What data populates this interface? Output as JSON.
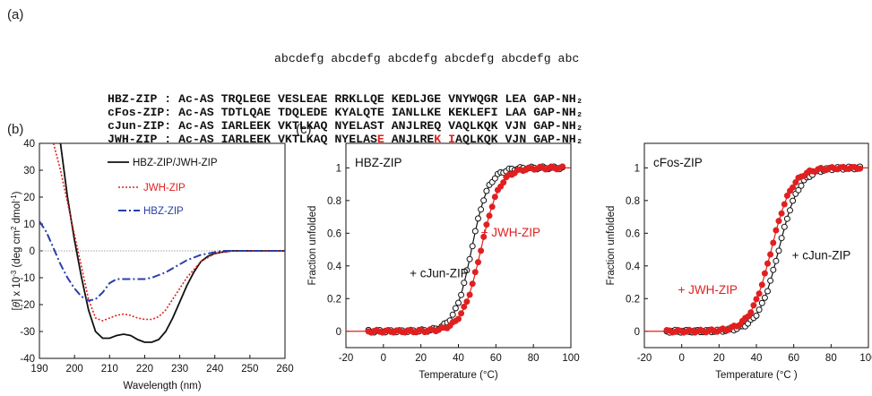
{
  "panels": {
    "a": "(a)",
    "b": "(b)",
    "c": "(c)"
  },
  "sequences": {
    "header": "abcdefg abcdefg abcdefg abcdefg abcdefg abc",
    "rows": [
      {
        "name": "HBZ-ZIP :",
        "prefix": "Ac-AS",
        "segments": [
          "TRQLEGE",
          "VESLEAE",
          "RRKLLQE",
          "KEDLJGE",
          "VNYWQGR",
          "LEA"
        ],
        "suffix": "GAP-NH₂",
        "red": []
      },
      {
        "name": "cFos-ZIP:",
        "prefix": "Ac-AS",
        "segments": [
          "TDTLQAE",
          "TDQLEDE",
          "KYALQTE",
          "IANLLKE",
          "KEKLEFI",
          "LAA"
        ],
        "suffix": "GAP-NH₂",
        "red": []
      },
      {
        "name": "cJun-ZIP:",
        "prefix": "Ac-AS",
        "segments": [
          "IARLEEK",
          "VKTLKAQ",
          "NYELAST",
          "ANJLREQ",
          "VAQLKQK",
          "VJN"
        ],
        "suffix": "GAP-NH₂",
        "red": []
      },
      {
        "name": "JWH-ZIP :",
        "prefix": "Ac-AS",
        "segments": [
          "IARLEEK",
          "VKTLKAQ",
          "NYELASE",
          "ANJLREK",
          "IAQLKQK",
          "VJN"
        ],
        "suffix": "GAP-NH₂",
        "red": [
          [
            2,
            6
          ],
          [
            3,
            6
          ],
          [
            4,
            0
          ]
        ]
      }
    ]
  },
  "colors": {
    "black": "#111111",
    "red": "#e02020",
    "blue": "#2a3fa8",
    "grid": "#888888"
  },
  "chart_data": [
    {
      "type": "line",
      "xlabel": "Wavelength (nm)",
      "ylabel_parts": [
        "[",
        "θ",
        "] x 10",
        "-3",
        " (deg cm",
        "2",
        " dmol",
        "-1",
        ")"
      ],
      "xlim": [
        190,
        260
      ],
      "ylim": [
        -40,
        40
      ],
      "xticks": [
        190,
        200,
        210,
        220,
        230,
        240,
        250,
        260
      ],
      "yticks": [
        -40,
        -30,
        -20,
        -10,
        0,
        10,
        20,
        30,
        40
      ],
      "legend_placement": "top-right",
      "series": [
        {
          "name": "HBZ-ZIP/JWH-ZIP",
          "style": "solid",
          "color": "#111111",
          "x": [
            196,
            198,
            200,
            202,
            204,
            206,
            208,
            210,
            212,
            214,
            216,
            218,
            220,
            222,
            224,
            226,
            228,
            230,
            232,
            234,
            236,
            238,
            240,
            242,
            245,
            250,
            255,
            260
          ],
          "y": [
            40,
            20,
            4,
            -10,
            -22,
            -30,
            -32.5,
            -32.5,
            -31.5,
            -31,
            -31.5,
            -33,
            -34,
            -34,
            -33,
            -30,
            -25,
            -19,
            -13,
            -8,
            -4,
            -2,
            -1,
            -0.5,
            0,
            0,
            0,
            0
          ]
        },
        {
          "name": "JWH-ZIP",
          "style": "dotted",
          "color": "#e02020",
          "x": [
            194,
            196,
            198,
            200,
            202,
            204,
            206,
            208,
            210,
            212,
            214,
            216,
            218,
            220,
            222,
            224,
            226,
            228,
            230,
            232,
            234,
            236,
            238,
            240,
            242,
            245,
            250,
            255,
            260
          ],
          "y": [
            40,
            30,
            18,
            6,
            -6,
            -18,
            -25,
            -26,
            -25,
            -24,
            -23.5,
            -24,
            -25,
            -25.5,
            -25.5,
            -24.5,
            -22,
            -18,
            -14,
            -10,
            -7,
            -4,
            -2.5,
            -1,
            -0.5,
            0,
            0,
            0,
            0
          ]
        },
        {
          "name": "HBZ-ZIP",
          "style": "dashdot",
          "color": "#2a3fa8",
          "x": [
            190,
            192,
            194,
            196,
            198,
            200,
            202,
            204,
            206,
            208,
            210,
            212,
            214,
            216,
            218,
            220,
            222,
            224,
            226,
            228,
            230,
            232,
            234,
            236,
            238,
            240,
            242,
            245,
            250,
            255,
            260
          ],
          "y": [
            11,
            7,
            1,
            -5,
            -10,
            -14,
            -17,
            -18.5,
            -18,
            -15.5,
            -12,
            -10.5,
            -10.5,
            -10.5,
            -10.5,
            -10.5,
            -10,
            -9,
            -8,
            -6.5,
            -5,
            -3.5,
            -2.5,
            -1.5,
            -1,
            -0.5,
            0,
            0,
            0,
            0,
            0
          ]
        }
      ]
    },
    {
      "type": "scatter",
      "title": "HBZ-ZIP",
      "xlabel": "Temperature (°C)",
      "ylabel": "Fraction unfolded",
      "xlim": [
        -20,
        100
      ],
      "ylim": [
        -0.1,
        1.15
      ],
      "xticks": [
        -20,
        0,
        20,
        40,
        60,
        80,
        100
      ],
      "yticks": [
        0,
        0.2,
        0.4,
        0.6,
        0.8,
        1
      ],
      "annotations": [
        {
          "text": "+ cJun-ZIP",
          "color": "#111111",
          "x": 14,
          "y": 0.33
        },
        {
          "text": "+ JWH-ZIP",
          "color": "#e02020",
          "x": 52,
          "y": 0.58
        }
      ],
      "series": [
        {
          "name": "+ cJun-ZIP",
          "marker": "open-circle",
          "color": "#111111",
          "midpoint": 47,
          "slope": 0.22,
          "xrange": [
            -8,
            96
          ]
        },
        {
          "name": "+ JWH-ZIP",
          "marker": "filled-circle",
          "color": "#e02020",
          "midpoint": 52,
          "slope": 0.2,
          "xrange": [
            -8,
            96
          ]
        }
      ]
    },
    {
      "type": "scatter",
      "title": "cFos-ZIP",
      "xlabel": "Temperature (°C )",
      "ylabel": "Fraction unfolded",
      "xlim": [
        -20,
        100
      ],
      "ylim": [
        -0.1,
        1.15
      ],
      "xticks": [
        -20,
        0,
        20,
        40,
        60,
        80,
        100
      ],
      "yticks": [
        0,
        0.2,
        0.4,
        0.6,
        0.8,
        1
      ],
      "annotations": [
        {
          "text": "+ cJun-ZIP",
          "color": "#111111",
          "x": 59,
          "y": 0.44
        },
        {
          "text": "+ JWH-ZIP",
          "color": "#e02020",
          "x": -2,
          "y": 0.23
        }
      ],
      "series": [
        {
          "name": "+ cJun-ZIP",
          "marker": "open-circle",
          "color": "#111111",
          "midpoint": 52,
          "slope": 0.18,
          "xrange": [
            -8,
            96
          ]
        },
        {
          "name": "+ JWH-ZIP",
          "marker": "filled-circle",
          "color": "#e02020",
          "midpoint": 48,
          "slope": 0.18,
          "xrange": [
            -8,
            96
          ]
        }
      ]
    }
  ]
}
